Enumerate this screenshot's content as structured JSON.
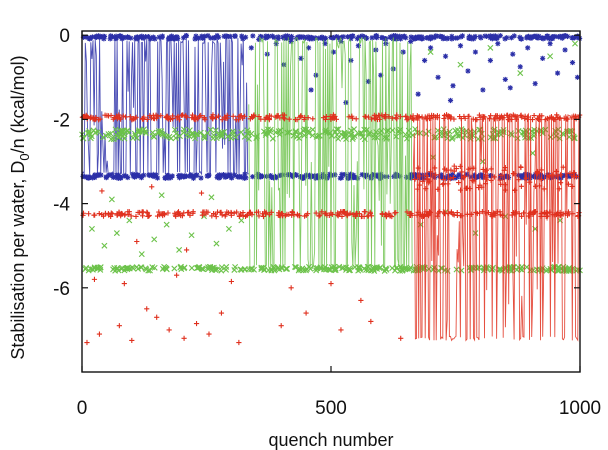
{
  "chart_data": {
    "type": "scatter",
    "xlabel": "quench number",
    "ylabel_main": "Stabilisation per water, D",
    "ylabel_sub": "0",
    "ylabel_tail": "/n (kcal/mol)",
    "xlim": [
      0,
      1000
    ],
    "ylim": [
      -8,
      0.1
    ],
    "x_ticks": [
      0,
      500,
      1000
    ],
    "x_tick_labels": [
      "0",
      "500",
      "1000"
    ],
    "y_ticks": [
      0,
      -2,
      -4,
      -6
    ],
    "y_tick_labels": [
      "0",
      "-2",
      "-4",
      "-6"
    ],
    "grid": false,
    "legend": "none",
    "series": [
      {
        "color": "#2b2fa8",
        "marker": "star",
        "lines": {
          "x_range": [
            0,
            335
          ],
          "y_low": -3.35,
          "y_high": -0.05
        },
        "bands": [
          {
            "x_range": [
              0,
              1000
            ],
            "y": -3.35,
            "y_spread": 0.05
          },
          {
            "x_range": [
              0,
              1000
            ],
            "y": -0.05,
            "y_spread": 0.04
          }
        ],
        "scatter": [
          [
            340,
            -0.3
          ],
          [
            355,
            -0.1
          ],
          [
            372,
            -0.45
          ],
          [
            390,
            -0.2
          ],
          [
            405,
            -0.7
          ],
          [
            420,
            -0.15
          ],
          [
            440,
            -0.55
          ],
          [
            455,
            -0.3
          ],
          [
            470,
            -0.95
          ],
          [
            488,
            -0.2
          ],
          [
            505,
            -0.4
          ],
          [
            520,
            -0.15
          ],
          [
            540,
            -0.6
          ],
          [
            555,
            -0.25
          ],
          [
            575,
            -1.1
          ],
          [
            590,
            -0.35
          ],
          [
            610,
            -0.2
          ],
          [
            625,
            -0.8
          ],
          [
            645,
            -0.4
          ],
          [
            660,
            -0.15
          ],
          [
            675,
            -1.4
          ],
          [
            688,
            -0.6
          ],
          [
            700,
            -0.3
          ],
          [
            715,
            -1.0
          ],
          [
            730,
            -0.5
          ],
          [
            745,
            -1.2
          ],
          [
            760,
            -0.25
          ],
          [
            775,
            -0.85
          ],
          [
            790,
            -0.4
          ],
          [
            805,
            -1.3
          ],
          [
            820,
            -0.6
          ],
          [
            835,
            -0.2
          ],
          [
            850,
            -1.05
          ],
          [
            865,
            -0.45
          ],
          [
            880,
            -0.75
          ],
          [
            895,
            -0.3
          ],
          [
            910,
            -1.15
          ],
          [
            925,
            -0.55
          ],
          [
            940,
            -0.2
          ],
          [
            955,
            -0.9
          ],
          [
            970,
            -0.35
          ],
          [
            985,
            -0.65
          ],
          [
            995,
            -1.0
          ],
          [
            460,
            -1.3
          ],
          [
            530,
            -1.6
          ],
          [
            600,
            -0.95
          ],
          [
            740,
            -1.55
          ],
          [
            860,
            -1.25
          ]
        ]
      },
      {
        "color": "#6cc24a",
        "marker": "x",
        "lines": {
          "x_range": [
            335,
            665
          ],
          "y_low": -5.55,
          "y_high": -0.05
        },
        "bands": [
          {
            "x_range": [
              0,
              1000
            ],
            "y": -2.35,
            "y_spread": 0.12
          },
          {
            "x_range": [
              0,
              1000
            ],
            "y": -5.55,
            "y_spread": 0.05
          }
        ],
        "scatter": [
          [
            20,
            -4.6
          ],
          [
            45,
            -5.0
          ],
          [
            70,
            -4.7
          ],
          [
            95,
            -4.4
          ],
          [
            120,
            -5.2
          ],
          [
            145,
            -4.85
          ],
          [
            170,
            -4.5
          ],
          [
            195,
            -5.1
          ],
          [
            220,
            -4.75
          ],
          [
            245,
            -4.3
          ],
          [
            270,
            -4.95
          ],
          [
            295,
            -4.6
          ],
          [
            320,
            -4.4
          ],
          [
            60,
            -3.9
          ],
          [
            160,
            -3.8
          ],
          [
            260,
            -3.85
          ],
          [
            680,
            -4.5
          ],
          [
            730,
            -4.2
          ],
          [
            790,
            -4.7
          ],
          [
            850,
            -4.3
          ],
          [
            910,
            -4.6
          ],
          [
            960,
            -4.4
          ],
          [
            700,
            -0.4
          ],
          [
            760,
            -0.7
          ],
          [
            820,
            -0.3
          ],
          [
            880,
            -0.9
          ],
          [
            940,
            -0.5
          ],
          [
            990,
            -0.2
          ],
          [
            705,
            -2.9
          ],
          [
            805,
            -3.0
          ],
          [
            905,
            -2.8
          ]
        ]
      },
      {
        "color": "#e0301e",
        "marker": "plus",
        "lines": {
          "x_range": [
            665,
            1000
          ],
          "y_low": -7.25,
          "y_high": -1.85
        },
        "bands": [
          {
            "x_range": [
              0,
              1000
            ],
            "y": -4.25,
            "y_spread": 0.06
          },
          {
            "x_range": [
              0,
              1000
            ],
            "y": -1.95,
            "y_spread": 0.06
          },
          {
            "x_range": [
              665,
              1000
            ],
            "y": -3.4,
            "y_spread": 0.3
          }
        ],
        "scatter": [
          [
            10,
            -7.3
          ],
          [
            35,
            -7.1
          ],
          [
            75,
            -6.9
          ],
          [
            100,
            -7.25
          ],
          [
            130,
            -6.5
          ],
          [
            150,
            -6.7
          ],
          [
            175,
            -7.0
          ],
          [
            205,
            -7.2
          ],
          [
            230,
            -6.85
          ],
          [
            255,
            -7.1
          ],
          [
            280,
            -6.6
          ],
          [
            315,
            -7.3
          ],
          [
            400,
            -6.9
          ],
          [
            450,
            -6.6
          ],
          [
            520,
            -7.0
          ],
          [
            580,
            -6.8
          ],
          [
            640,
            -7.2
          ],
          [
            25,
            -5.8
          ],
          [
            85,
            -5.9
          ],
          [
            190,
            -5.7
          ],
          [
            300,
            -5.85
          ],
          [
            40,
            -3.7
          ],
          [
            140,
            -3.6
          ],
          [
            240,
            -3.75
          ],
          [
            110,
            -4.9
          ],
          [
            210,
            -5.1
          ],
          [
            420,
            -6.0
          ],
          [
            500,
            -5.9
          ],
          [
            560,
            -6.3
          ]
        ]
      }
    ]
  }
}
